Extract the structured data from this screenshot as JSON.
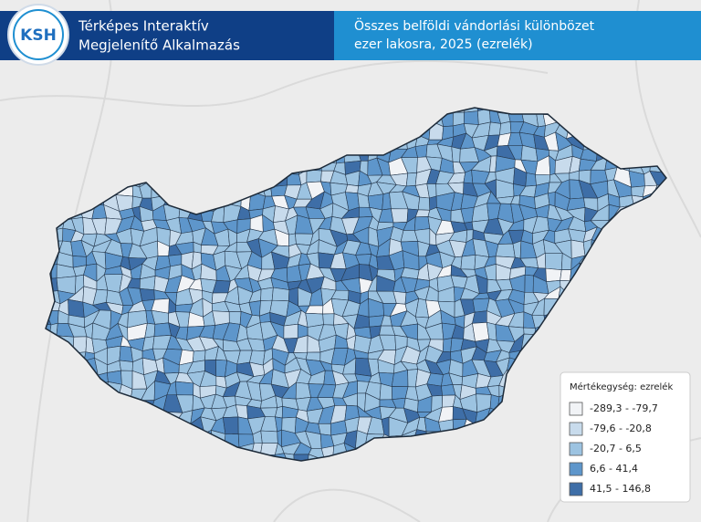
{
  "header": {
    "logo": "KSH",
    "title_lines": [
      "Térképes Interaktív",
      "Megjelenítő Alkalmazás"
    ],
    "subtitle_lines": [
      "Összes belföldi vándorlási különbözet",
      "ezer lakosra, 2025 (ezrelék)"
    ]
  },
  "legend": {
    "title": "Mértékegység: ezrelék",
    "items": [
      {
        "label": "-289,3 - -79,7",
        "color": "#f1f3f6"
      },
      {
        "label": "-79,6 - -20,8",
        "color": "#c8dbec"
      },
      {
        "label": "-20,7 - 6,5",
        "color": "#9cc3e1"
      },
      {
        "label": "6,6 - 41,4",
        "color": "#5e96cb"
      },
      {
        "label": "41,5 - 146,8",
        "color": "#3e6ea7"
      }
    ]
  }
}
